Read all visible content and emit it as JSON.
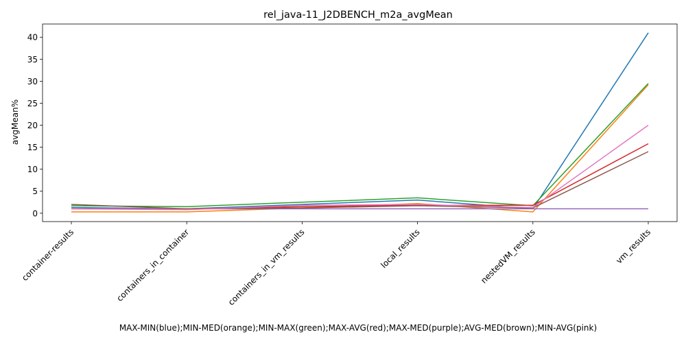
{
  "chart_data": {
    "type": "line",
    "title": "rel_java-11_J2DBENCH_m2a_avgMean",
    "xlabel": "MAX-MIN(blue);MIN-MED(orange);MIN-MAX(green);MAX-AVG(red);MAX-MED(purple);AVG-MED(brown);MIN-AVG(pink)",
    "ylabel": "avgMean%",
    "categories": [
      "container-results",
      "containers_in_container",
      "containers_in_vm_results",
      "local_results",
      "nestedVM_results",
      "vm_results"
    ],
    "yticks": [
      0,
      5,
      10,
      15,
      20,
      25,
      30,
      35,
      40
    ],
    "ylim": [
      -1.9,
      43
    ],
    "grid": false,
    "series": [
      {
        "color": "#1f77b4",
        "values": [
          1.3,
          1.0,
          2.0,
          3.0,
          1.0,
          41.0
        ]
      },
      {
        "color": "#ff7f0e",
        "values": [
          0.3,
          0.3,
          1.2,
          2.2,
          0.3,
          29.2
        ]
      },
      {
        "color": "#2ca02c",
        "values": [
          1.7,
          1.5,
          2.5,
          3.5,
          1.7,
          29.5
        ]
      },
      {
        "color": "#d62728",
        "values": [
          1.0,
          1.0,
          1.5,
          1.8,
          1.8,
          15.8
        ]
      },
      {
        "color": "#9467bd",
        "values": [
          1.0,
          1.0,
          1.0,
          1.0,
          1.0,
          1.0
        ]
      },
      {
        "color": "#8c564b",
        "values": [
          2.0,
          1.0,
          1.2,
          1.7,
          1.2,
          14.0
        ]
      },
      {
        "color": "#e377c2",
        "values": [
          1.0,
          0.8,
          1.8,
          2.0,
          1.3,
          20.0
        ]
      }
    ]
  }
}
